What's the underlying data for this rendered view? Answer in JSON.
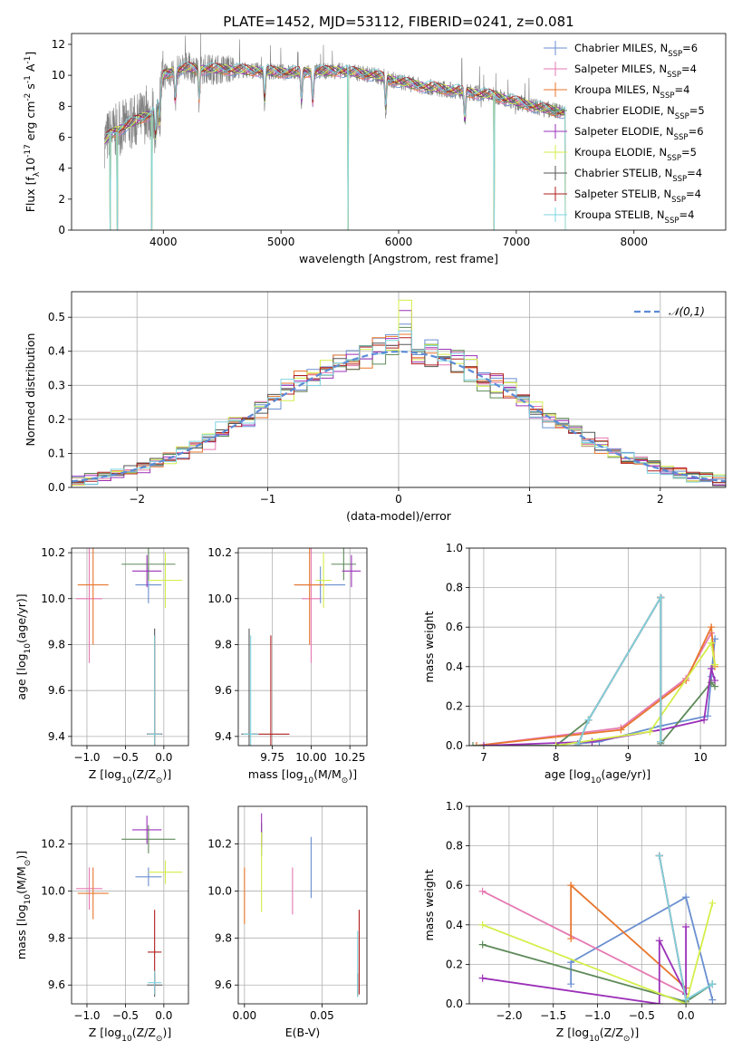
{
  "figure_title": "PLATE=1452, MJD=53112, FIBERID=0241, z=0.081",
  "models": [
    {
      "name": "Chabrier MILES, N$_{SSP}$=6",
      "label": "Chabrier MILES, N",
      "sub": "SSP",
      "tail": "=6",
      "color": "#6a8fd0"
    },
    {
      "name": "Salpeter MILES, N$_{SSP}$=4",
      "label": "Salpeter MILES, N",
      "sub": "SSP",
      "tail": "=4",
      "color": "#e67ab3"
    },
    {
      "name": "Kroupa MILES, N$_{SSP}$=4",
      "label": "Kroupa MILES, N",
      "sub": "SSP",
      "tail": "=4",
      "color": "#e8762c"
    },
    {
      "name": "Chabrier ELODIE, N$_{SSP}$=5",
      "label": "Chabrier ELODIE, N",
      "sub": "SSP",
      "tail": "=5",
      "color": "#5e8a5a"
    },
    {
      "name": "Salpeter ELODIE, N$_{SSP}$=6",
      "label": "Salpeter ELODIE, N",
      "sub": "SSP",
      "tail": "=6",
      "color": "#9b30b8"
    },
    {
      "name": "Kroupa ELODIE, N$_{SSP}$=5",
      "label": "Kroupa ELODIE, N",
      "sub": "SSP",
      "tail": "=5",
      "color": "#d4ee4a"
    },
    {
      "name": "Chabrier STELIB, N$_{SSP}$=4",
      "label": "Chabrier STELIB, N",
      "sub": "SSP",
      "tail": "=4",
      "color": "#555555"
    },
    {
      "name": "Salpeter STELIB, N$_{SSP}$=4",
      "label": "Salpeter STELIB, N",
      "sub": "SSP",
      "tail": "=4",
      "color": "#b01e1e"
    },
    {
      "name": "Kroupa STELIB, N$_{SSP}$=4",
      "label": "Kroupa STELIB, N",
      "sub": "SSP",
      "tail": "=4",
      "color": "#7fd4e0"
    }
  ],
  "chart_data": [
    {
      "id": "spectrum",
      "type": "line",
      "xlabel": "wavelength [Angstrom, rest frame]",
      "ylabel": "Flux [f$_\\lambda$10$^{-17}$ erg cm$^{-2}$ s$^{-1}$ A$^{-1}$]",
      "xlim": [
        3220,
        8780
      ],
      "ylim": [
        0,
        12.7
      ],
      "xticks": [
        4000,
        5000,
        6000,
        7000,
        8000
      ],
      "yticks": [
        0,
        2,
        4,
        6,
        8,
        10,
        12
      ],
      "data_color": "#808080",
      "continuum": {
        "x": [
          3500,
          3550,
          3600,
          3700,
          3800,
          3900,
          3950,
          4000,
          4100,
          4200,
          4300,
          4500,
          4800,
          5000,
          5200,
          5500,
          5800,
          6000,
          6200,
          6500,
          6800,
          7000,
          7200,
          7400
        ],
        "y": [
          5.8,
          6.2,
          6.4,
          6.8,
          7.2,
          7.5,
          8.0,
          10.0,
          10.3,
          10.5,
          10.4,
          10.4,
          10.3,
          10.2,
          10.2,
          10.3,
          10.0,
          9.6,
          9.3,
          9.0,
          8.7,
          8.3,
          7.9,
          7.6
        ]
      },
      "absorption_lines": [
        3934,
        3969,
        4102,
        4304,
        4861,
        5175,
        5270,
        5890,
        6563
      ],
      "dropouts_x": [
        3550,
        3610,
        3900,
        5570,
        6810,
        7420
      ],
      "legend": "upper-right"
    },
    {
      "id": "residuals",
      "type": "step",
      "xlabel": "(data-model)/error",
      "ylabel": "Normed distribution",
      "xlim": [
        -2.5,
        2.5
      ],
      "ylim": [
        0,
        0.575
      ],
      "xticks": [
        -2,
        -1,
        0,
        1,
        2
      ],
      "yticks": [
        0,
        0.1,
        0.2,
        0.3,
        0.4,
        0.5
      ],
      "bin_width": 0.1,
      "gaussian_label": "$\\mathcal{N}(0,1)$",
      "gaussian_color": "#5b8bd6",
      "peak_heights": [
        0.48,
        0.46,
        0.45,
        0.47,
        0.52,
        0.55,
        0.42,
        0.44,
        0.46
      ],
      "legend": "upper-right"
    },
    {
      "id": "age-vs-Z",
      "type": "errorbar",
      "xlabel": "Z [log$_{10}$(Z/Z$_\\odot$)]",
      "ylabel": "age  [log$_{10}$(age/yr)]",
      "xlim": [
        -1.2,
        0.32
      ],
      "ylim": [
        9.36,
        10.22
      ],
      "xticks": [
        -1.0,
        -0.5,
        0.0
      ],
      "yticks": [
        9.4,
        9.6,
        9.8,
        10.0,
        10.2
      ],
      "points": [
        {
          "model": 0,
          "x": -0.2,
          "xerr": 0.17,
          "y": 10.06,
          "yerr": 0.08
        },
        {
          "model": 1,
          "x": -0.97,
          "xerr": 0.17,
          "y": 10.0,
          "yerr": 0.28
        },
        {
          "model": 2,
          "x": -0.92,
          "xerr": 0.2,
          "y": 10.06,
          "yerr": 0.26
        },
        {
          "model": 3,
          "x": -0.2,
          "xerr": 0.35,
          "y": 10.15,
          "yerr": 0.07
        },
        {
          "model": 4,
          "x": -0.22,
          "xerr": 0.19,
          "y": 10.12,
          "yerr": 0.07
        },
        {
          "model": 5,
          "x": 0.02,
          "xerr": 0.22,
          "y": 10.08,
          "yerr": 0.12
        },
        {
          "model": 6,
          "x": -0.12,
          "xerr": 0.1,
          "y": 9.41,
          "yerr": 0.46
        },
        {
          "model": 7,
          "x": -0.12,
          "xerr": 0.09,
          "y": 9.41,
          "yerr": 0.43
        },
        {
          "model": 8,
          "x": -0.12,
          "xerr": 0.09,
          "y": 9.41,
          "yerr": 0.43
        }
      ]
    },
    {
      "id": "age-vs-mass",
      "type": "errorbar",
      "xlabel": "mass [log$_{10}$(M/M$_\\odot$)]",
      "xlim": [
        9.53,
        10.36
      ],
      "ylim": [
        9.36,
        10.22
      ],
      "xticks": [
        9.75,
        10.0,
        10.25
      ],
      "xtick_labels": [
        "9.75",
        "10.00",
        "10.25"
      ],
      "yticks": [
        9.4,
        9.6,
        9.8,
        10.0,
        10.2
      ],
      "points": [
        {
          "model": 0,
          "x": 10.06,
          "xerr": 0.16,
          "y": 10.06,
          "yerr": 0.08
        },
        {
          "model": 1,
          "x": 10.0,
          "xerr": 0.06,
          "y": 10.0,
          "yerr": 0.28
        },
        {
          "model": 2,
          "x": 9.99,
          "xerr": 0.1,
          "y": 10.06,
          "yerr": 0.26
        },
        {
          "model": 3,
          "x": 10.21,
          "xerr": 0.08,
          "y": 10.15,
          "yerr": 0.07
        },
        {
          "model": 4,
          "x": 10.26,
          "xerr": 0.06,
          "y": 10.12,
          "yerr": 0.07
        },
        {
          "model": 5,
          "x": 10.08,
          "xerr": 0.05,
          "y": 10.08,
          "yerr": 0.12
        },
        {
          "model": 6,
          "x": 9.6,
          "xerr": 0.05,
          "y": 9.41,
          "yerr": 0.46
        },
        {
          "model": 7,
          "x": 9.74,
          "xerr": 0.12,
          "y": 9.41,
          "yerr": 0.43
        },
        {
          "model": 8,
          "x": 9.61,
          "xerr": 0.05,
          "y": 9.41,
          "yerr": 0.43
        }
      ]
    },
    {
      "id": "massweight-vs-age",
      "type": "line",
      "xlabel": "age  [log$_{10}$(age/yr)]",
      "ylabel": "mass weight",
      "xlim": [
        6.8,
        10.35
      ],
      "ylim": [
        0,
        1.0
      ],
      "xticks": [
        7,
        8,
        9,
        10
      ],
      "yticks": [
        0.0,
        0.2,
        0.4,
        0.6,
        0.8,
        1.0
      ],
      "series": [
        {
          "model": 0,
          "x": [
            8.3,
            8.6,
            9.45,
            10.1,
            10.2,
            10.15
          ],
          "y": [
            0.01,
            0.02,
            0.1,
            0.15,
            0.54,
            0.35
          ]
        },
        {
          "model": 1,
          "x": [
            6.9,
            8.9,
            9.8,
            10.15
          ],
          "y": [
            0.0,
            0.09,
            0.34,
            0.57
          ]
        },
        {
          "model": 2,
          "x": [
            6.9,
            8.9,
            9.8,
            10.15,
            10.2
          ],
          "y": [
            0.0,
            0.08,
            0.33,
            0.6,
            0.4
          ]
        },
        {
          "model": 3,
          "x": [
            6.85,
            8.0,
            8.45,
            9.45,
            9.45,
            10.15,
            10.2
          ],
          "y": [
            0.0,
            0.0,
            0.13,
            0.75,
            0.01,
            0.32,
            0.3
          ]
        },
        {
          "model": 4,
          "x": [
            7.0,
            8.5,
            9.45,
            10.05,
            10.15,
            10.2
          ],
          "y": [
            0.0,
            0.02,
            0.08,
            0.13,
            0.39,
            0.33
          ]
        },
        {
          "model": 5,
          "x": [
            8.0,
            9.3,
            10.15,
            10.2
          ],
          "y": [
            0.0,
            0.07,
            0.52,
            0.41
          ]
        },
        {
          "model": 6,
          "x": [
            8.3,
            8.45,
            9.45,
            9.45
          ],
          "y": [
            0.0,
            0.13,
            0.75,
            0.02
          ]
        },
        {
          "model": 7,
          "x": [
            8.3,
            8.45,
            9.45,
            9.45
          ],
          "y": [
            0.0,
            0.13,
            0.75,
            0.02
          ]
        },
        {
          "model": 8,
          "x": [
            8.3,
            8.45,
            9.45,
            9.45
          ],
          "y": [
            0.0,
            0.13,
            0.75,
            0.02
          ]
        }
      ]
    },
    {
      "id": "mass-vs-Z",
      "type": "errorbar",
      "xlabel": "Z [log$_{10}$(Z/Z$_\\odot$)]",
      "ylabel": "mass [log$_{10}$(M/M$_\\odot$)]",
      "xlim": [
        -1.2,
        0.32
      ],
      "ylim": [
        9.52,
        10.36
      ],
      "xticks": [
        -1.0,
        -0.5,
        0.0
      ],
      "yticks": [
        9.6,
        9.8,
        10.0,
        10.2
      ],
      "points": [
        {
          "model": 0,
          "x": -0.2,
          "xerr": 0.17,
          "y": 10.06,
          "yerr": 0.04
        },
        {
          "model": 1,
          "x": -0.97,
          "xerr": 0.17,
          "y": 10.01,
          "yerr": 0.09
        },
        {
          "model": 2,
          "x": -0.92,
          "xerr": 0.2,
          "y": 9.99,
          "yerr": 0.11
        },
        {
          "model": 3,
          "x": -0.2,
          "xerr": 0.35,
          "y": 10.22,
          "yerr": 0.06
        },
        {
          "model": 4,
          "x": -0.22,
          "xerr": 0.19,
          "y": 10.26,
          "yerr": 0.06
        },
        {
          "model": 5,
          "x": 0.02,
          "xerr": 0.22,
          "y": 10.08,
          "yerr": 0.05
        },
        {
          "model": 6,
          "x": -0.12,
          "xerr": 0.1,
          "y": 9.6,
          "yerr": 0.05
        },
        {
          "model": 7,
          "x": -0.12,
          "xerr": 0.09,
          "y": 9.74,
          "yerr": 0.18
        },
        {
          "model": 8,
          "x": -0.12,
          "xerr": 0.09,
          "y": 9.61,
          "yerr": 0.05
        }
      ]
    },
    {
      "id": "mass-vs-EBV",
      "type": "errorbar",
      "xlabel": "E(B-V)",
      "xlim": [
        -0.004,
        0.079
      ],
      "ylim": [
        9.52,
        10.36
      ],
      "xticks": [
        0.0,
        0.05
      ],
      "xtick_labels": [
        "0.00",
        "0.05"
      ],
      "yticks": [
        9.6,
        9.8,
        10.0,
        10.2
      ],
      "points": [
        {
          "model": 0,
          "x": 0.043,
          "xerr": 0.0,
          "y": 10.1,
          "yerr": 0.13
        },
        {
          "model": 1,
          "x": 0.031,
          "xerr": 0.0,
          "y": 10.0,
          "yerr": 0.1
        },
        {
          "model": 2,
          "x": 0.0,
          "xerr": 0.0,
          "y": 9.98,
          "yerr": 0.12
        },
        {
          "model": 3,
          "x": 0.011,
          "xerr": 0.0,
          "y": 10.22,
          "yerr": 0.07
        },
        {
          "model": 4,
          "x": 0.011,
          "xerr": 0.0,
          "y": 10.26,
          "yerr": 0.07
        },
        {
          "model": 5,
          "x": 0.011,
          "xerr": 0.0,
          "y": 10.08,
          "yerr": 0.17
        },
        {
          "model": 6,
          "x": 0.073,
          "xerr": 0.0,
          "y": 9.6,
          "yerr": 0.05
        },
        {
          "model": 7,
          "x": 0.074,
          "xerr": 0.0,
          "y": 9.74,
          "yerr": 0.18
        },
        {
          "model": 8,
          "x": 0.073,
          "xerr": 0.0,
          "y": 9.69,
          "yerr": 0.14
        }
      ]
    },
    {
      "id": "massweight-vs-Z",
      "type": "line",
      "xlabel": "Z [log$_{10}$(Z/Z$_\\odot$)]",
      "ylabel": "mass weight",
      "xlim": [
        -2.45,
        0.45
      ],
      "ylim": [
        0,
        1.0
      ],
      "xticks": [
        -2.0,
        -1.5,
        -1.0,
        -0.5,
        0.0
      ],
      "yticks": [
        0.0,
        0.2,
        0.4,
        0.6,
        0.8,
        1.0
      ],
      "series": [
        {
          "model": 0,
          "x": [
            -1.3,
            -1.3,
            0.0,
            0.3
          ],
          "y": [
            0.1,
            0.21,
            0.54,
            0.02
          ]
        },
        {
          "model": 1,
          "x": [
            -2.3,
            0.0
          ],
          "y": [
            0.57,
            0.05
          ]
        },
        {
          "model": 2,
          "x": [
            -1.3,
            -1.3,
            0.0
          ],
          "y": [
            0.33,
            0.6,
            0.08
          ]
        },
        {
          "model": 3,
          "x": [
            -2.3,
            0.0,
            0.3
          ],
          "y": [
            0.3,
            0.01,
            0.1
          ]
        },
        {
          "model": 4,
          "x": [
            -2.3,
            -0.3,
            -0.3,
            0.0,
            0.0
          ],
          "y": [
            0.13,
            0.0,
            0.32,
            0.05,
            0.39
          ]
        },
        {
          "model": 5,
          "x": [
            -2.3,
            0.0,
            0.3
          ],
          "y": [
            0.4,
            0.0,
            0.51
          ]
        },
        {
          "model": 6,
          "x": [
            -0.3,
            0.0,
            0.3
          ],
          "y": [
            0.75,
            0.02,
            0.1
          ]
        },
        {
          "model": 7,
          "x": [
            -0.3,
            0.0
          ],
          "y": [
            0.75,
            0.02
          ]
        },
        {
          "model": 8,
          "x": [
            -0.3,
            0.0,
            0.3
          ],
          "y": [
            0.75,
            0.02,
            0.1
          ]
        }
      ]
    }
  ]
}
